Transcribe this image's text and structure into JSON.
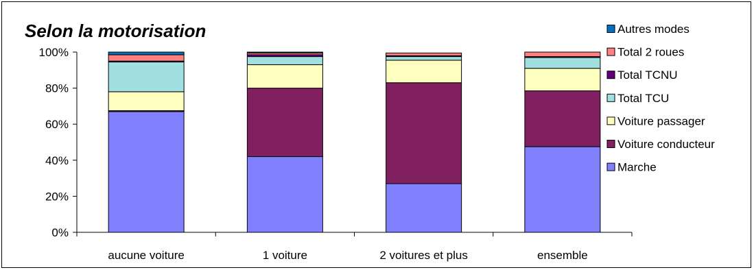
{
  "chart_data": {
    "type": "bar",
    "stacked": true,
    "title": "Selon la motorisation",
    "xlabel": "",
    "ylabel": "",
    "ylim": [
      0,
      100
    ],
    "yticks": [
      "0%",
      "20%",
      "40%",
      "60%",
      "80%",
      "100%"
    ],
    "categories": [
      "aucune voiture",
      "1 voiture",
      "2 voitures et plus",
      "ensemble"
    ],
    "series": [
      {
        "name": "Marche",
        "color": "#8080FF",
        "values": [
          67,
          42,
          27,
          47.5
        ]
      },
      {
        "name": "Voiture conducteur",
        "color": "#802060",
        "values": [
          0.5,
          38,
          56,
          31
        ]
      },
      {
        "name": "Voiture passager",
        "color": "#FFFFC0",
        "values": [
          10.5,
          13,
          12.5,
          12.5
        ]
      },
      {
        "name": "Total TCU",
        "color": "#A0E0E0",
        "values": [
          16.5,
          4.5,
          2,
          6
        ]
      },
      {
        "name": "Total TCNU",
        "color": "#600080",
        "values": [
          0.5,
          1,
          0.5,
          0.5
        ]
      },
      {
        "name": "Total 2 roues",
        "color": "#FF8080",
        "values": [
          3.5,
          1,
          1.5,
          2.5
        ]
      },
      {
        "name": "Autres modes",
        "color": "#0070C0",
        "values": [
          1.5,
          0.5,
          0,
          0
        ]
      }
    ],
    "legend_position": "right",
    "grid": false
  }
}
